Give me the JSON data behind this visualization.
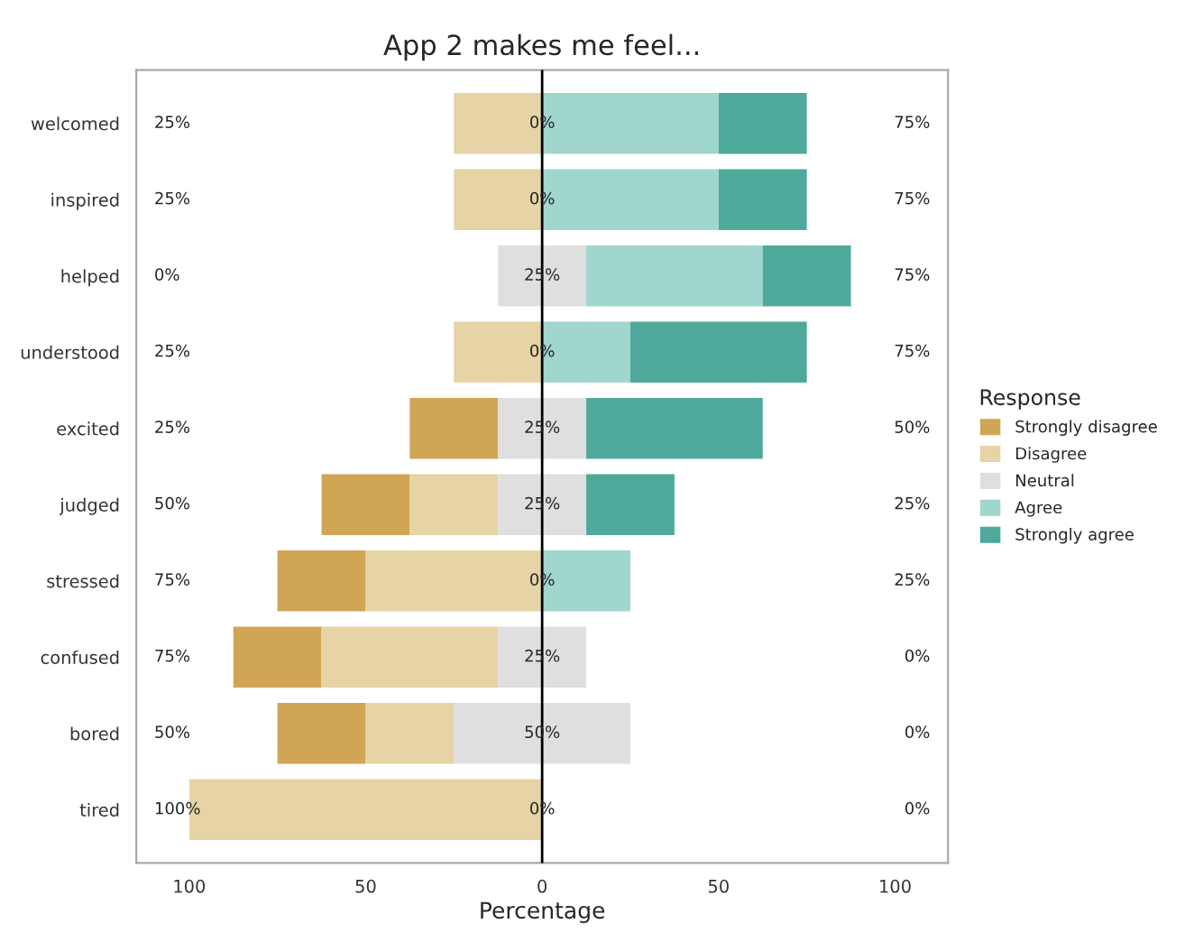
{
  "chart_data": {
    "type": "bar",
    "orientation": "horizontal",
    "title": "App 2 makes me feel...",
    "xlabel": "Percentage",
    "legend_title": "Response",
    "legend": "right",
    "grid": false,
    "categories": [
      "welcomed",
      "inspired",
      "helped",
      "understood",
      "excited",
      "judged",
      "stressed",
      "confused",
      "bored",
      "tired"
    ],
    "xlim": [
      -115,
      115
    ],
    "xticks": [
      {
        "value": -100,
        "label": "100"
      },
      {
        "value": -50,
        "label": "50"
      },
      0,
      50,
      100
    ],
    "series": [
      {
        "name": "Strongly disagree",
        "color": "#d0a554",
        "values": [
          0,
          0,
          0,
          0,
          25,
          25,
          25,
          25,
          25,
          0
        ],
        "base": [
          null,
          null,
          null,
          null,
          -37.5,
          -62.5,
          -75,
          -87.5,
          -75,
          null
        ]
      },
      {
        "name": "Disagree",
        "color": "#e6d3a6",
        "values": [
          25,
          25,
          0,
          25,
          0,
          25,
          50,
          50,
          25,
          100
        ],
        "base": [
          -25,
          -25,
          null,
          -25,
          null,
          -37.5,
          -50,
          -62.5,
          -50,
          -100
        ]
      },
      {
        "name": "Neutral",
        "color": "#dfdfdf",
        "values": [
          0,
          0,
          25,
          0,
          25,
          25,
          0,
          25,
          50,
          0
        ],
        "base": [
          null,
          null,
          -12.5,
          null,
          -12.5,
          -12.5,
          null,
          -12.5,
          -25,
          null
        ]
      },
      {
        "name": "Agree",
        "color": "#a0d6cd",
        "values": [
          50,
          50,
          50,
          25,
          0,
          0,
          25,
          0,
          0,
          0
        ],
        "base": [
          0,
          0,
          12.5,
          0,
          null,
          null,
          0,
          null,
          null,
          null
        ]
      },
      {
        "name": "Strongly agree",
        "color": "#4fa99b",
        "values": [
          25,
          25,
          25,
          50,
          50,
          25,
          0,
          0,
          0,
          0
        ],
        "base": [
          50,
          50,
          62.5,
          25,
          12.5,
          12.5,
          null,
          null,
          null,
          null
        ]
      }
    ],
    "ref_lines": [
      {
        "axis": "x",
        "value": 0,
        "color": "#000000"
      }
    ],
    "annotations": [
      "25%",
      "0%",
      "75%",
      "25%",
      "0%",
      "75%",
      "0%",
      "25%",
      "75%",
      "25%",
      "0%",
      "75%",
      "25%",
      "25%",
      "50%",
      "50%",
      "25%",
      "25%",
      "75%",
      "0%",
      "25%",
      "75%",
      "25%",
      "0%",
      "50%",
      "50%",
      "0%",
      "100%",
      "0%",
      "0%"
    ]
  }
}
